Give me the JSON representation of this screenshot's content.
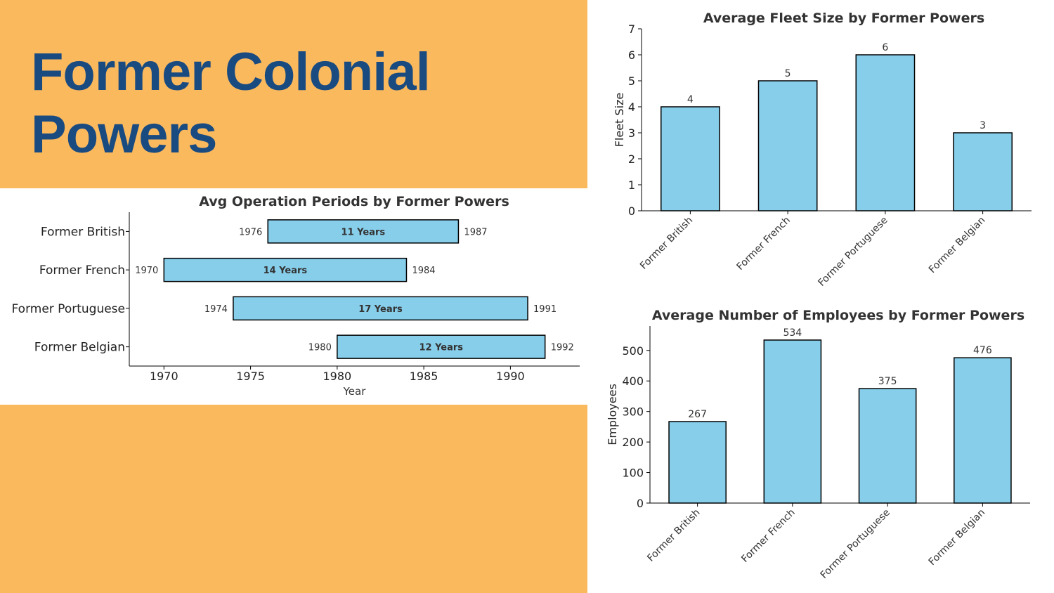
{
  "slide": {
    "title": "Former Colonial Powers",
    "colors": {
      "background_accent": "#fbb95e",
      "title": "#1a4b80",
      "bar_fill": "#87ceeb",
      "bar_edge": "#000000"
    }
  },
  "chart_data": [
    {
      "id": "operation",
      "type": "bar",
      "orientation": "horizontal",
      "title": "Avg Operation Periods by Former Powers",
      "xlabel": "Year",
      "ylabel": "",
      "xlim": [
        1968,
        1994
      ],
      "xticks": [
        1970,
        1975,
        1980,
        1985,
        1990
      ],
      "categories": [
        "Former British",
        "Former French",
        "Former Portuguese",
        "Former Belgian"
      ],
      "start": [
        1976,
        1970,
        1974,
        1980
      ],
      "end": [
        1987,
        1984,
        1991,
        1992
      ],
      "start_labels": [
        "1976",
        "1970",
        "1974",
        "1980"
      ],
      "end_labels": [
        "1987",
        "1984",
        "1991",
        "1992"
      ],
      "duration_labels": [
        "11 Years",
        "14 Years",
        "17 Years",
        "12 Years"
      ]
    },
    {
      "id": "fleet",
      "type": "bar",
      "title": "Average Fleet Size by Former Powers",
      "xlabel": "",
      "ylabel": "Fleet Size",
      "ylim": [
        0,
        7
      ],
      "yticks": [
        0,
        1,
        2,
        3,
        4,
        5,
        6,
        7
      ],
      "categories": [
        "Former British",
        "Former French",
        "Former Portuguese",
        "Former Belgian"
      ],
      "values": [
        4,
        5,
        6,
        3
      ]
    },
    {
      "id": "employees",
      "type": "bar",
      "title": "Average Number of Employees by Former Powers",
      "xlabel": "",
      "ylabel": "Employees",
      "ylim": [
        0,
        580
      ],
      "yticks": [
        0,
        100,
        200,
        300,
        400,
        500
      ],
      "categories": [
        "Former British",
        "Former French",
        "Former Portuguese",
        "Former Belgian"
      ],
      "values": [
        267,
        534,
        375,
        476
      ]
    }
  ]
}
